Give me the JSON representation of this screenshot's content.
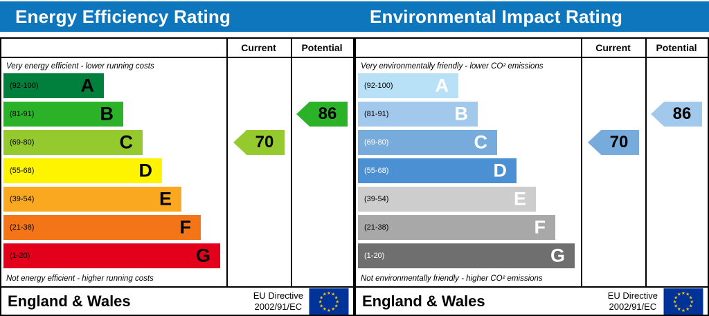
{
  "titlebar": {
    "left_title": "Energy Efficiency Rating",
    "right_title": "Environmental Impact Rating",
    "background": "#0e76bd"
  },
  "column_headers": {
    "current": "Current",
    "potential": "Potential"
  },
  "panels": [
    {
      "name": "Energy Efficiency Rating",
      "top_caption": "Very energy efficient - lower running costs",
      "bottom_caption": "Not energy efficient - higher running costs",
      "bands": [
        {
          "letter": "A",
          "range": "(92-100)",
          "color": "#007f3d",
          "letter_color": "#000000",
          "range_color": "#000000"
        },
        {
          "letter": "B",
          "range": "(81-91)",
          "color": "#2bb229",
          "letter_color": "#000000",
          "range_color": "#000000"
        },
        {
          "letter": "C",
          "range": "(69-80)",
          "color": "#95ca2e",
          "letter_color": "#000000",
          "range_color": "#000000"
        },
        {
          "letter": "D",
          "range": "(55-68)",
          "color": "#fef400",
          "letter_color": "#000000",
          "range_color": "#000000"
        },
        {
          "letter": "E",
          "range": "(39-54)",
          "color": "#f9a81f",
          "letter_color": "#000000",
          "range_color": "#000000"
        },
        {
          "letter": "F",
          "range": "(21-38)",
          "color": "#f47518",
          "letter_color": "#000000",
          "range_color": "#000000"
        },
        {
          "letter": "G",
          "range": "(1-20)",
          "color": "#e2001a",
          "letter_color": "#000000",
          "range_color": "#000000"
        }
      ],
      "current": {
        "value": "70",
        "band": "C",
        "color": "#95ca2e"
      },
      "potential": {
        "value": "86",
        "band": "B",
        "color": "#2bb229"
      },
      "footer": {
        "region": "England & Wales",
        "directive_line1": "EU Directive",
        "directive_line2": "2002/91/EC"
      }
    },
    {
      "name": "Environmental Impact Rating",
      "top_caption": "Very environmentally friendly - lower CO² emissions",
      "bottom_caption": "Not environmentally friendly - higher CO² emissions",
      "bands": [
        {
          "letter": "A",
          "range": "(92-100)",
          "color": "#b8e1f8",
          "letter_color": "#ffffff",
          "range_color": "#000000"
        },
        {
          "letter": "B",
          "range": "(81-91)",
          "color": "#a2c8ec",
          "letter_color": "#ffffff",
          "range_color": "#000000"
        },
        {
          "letter": "C",
          "range": "(69-80)",
          "color": "#76abdc",
          "letter_color": "#ffffff",
          "range_color": "#ffffff"
        },
        {
          "letter": "D",
          "range": "(55-68)",
          "color": "#4a90d3",
          "letter_color": "#ffffff",
          "range_color": "#ffffff"
        },
        {
          "letter": "E",
          "range": "(39-54)",
          "color": "#cdcdcd",
          "letter_color": "#ffffff",
          "range_color": "#000000"
        },
        {
          "letter": "F",
          "range": "(21-38)",
          "color": "#a8a8a8",
          "letter_color": "#ffffff",
          "range_color": "#000000"
        },
        {
          "letter": "G",
          "range": "(1-20)",
          "color": "#6f6f6f",
          "letter_color": "#ffffff",
          "range_color": "#ffffff"
        }
      ],
      "current": {
        "value": "70",
        "band": "C",
        "color": "#76abdc"
      },
      "potential": {
        "value": "86",
        "band": "B",
        "color": "#a2c8ec"
      },
      "footer": {
        "region": "England & Wales",
        "directive_line1": "EU Directive",
        "directive_line2": "2002/91/EC"
      }
    }
  ],
  "flag_colors": {
    "field": "#003399",
    "stars": "#ffcc00"
  },
  "chart_data": [
    {
      "type": "bar",
      "title": "Energy Efficiency Rating",
      "categories": [
        "A (92-100)",
        "B (81-91)",
        "C (69-80)",
        "D (55-68)",
        "E (39-54)",
        "F (21-38)",
        "G (1-20)"
      ],
      "band_colors": [
        "#007f3d",
        "#2bb229",
        "#95ca2e",
        "#fef400",
        "#f9a81f",
        "#f47518",
        "#e2001a"
      ],
      "current": 70,
      "current_band": "C",
      "potential": 86,
      "potential_band": "B",
      "scale": [
        1,
        100
      ]
    },
    {
      "type": "bar",
      "title": "Environmental Impact Rating",
      "categories": [
        "A (92-100)",
        "B (81-91)",
        "C (69-80)",
        "D (55-68)",
        "E (39-54)",
        "F (21-38)",
        "G (1-20)"
      ],
      "band_colors": [
        "#b8e1f8",
        "#a2c8ec",
        "#76abdc",
        "#4a90d3",
        "#cdcdcd",
        "#a8a8a8",
        "#6f6f6f"
      ],
      "current": 70,
      "current_band": "C",
      "potential": 86,
      "potential_band": "B",
      "scale": [
        1,
        100
      ]
    }
  ]
}
